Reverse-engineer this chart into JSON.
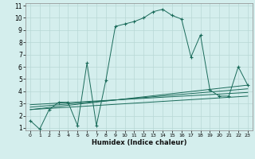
{
  "xlabel": "Humidex (Indice chaleur)",
  "bg_color": "#d4eeed",
  "grid_color": "#b8d8d5",
  "line_color": "#1a6b5a",
  "xlim": [
    -0.5,
    23.5
  ],
  "ylim": [
    0.8,
    11.2
  ],
  "xticks": [
    0,
    1,
    2,
    3,
    4,
    5,
    6,
    7,
    8,
    9,
    10,
    11,
    12,
    13,
    14,
    15,
    16,
    17,
    18,
    19,
    20,
    21,
    22,
    23
  ],
  "yticks": [
    1,
    2,
    3,
    4,
    5,
    6,
    7,
    8,
    9,
    10,
    11
  ],
  "series": {
    "main": {
      "x": [
        0,
        1,
        2,
        3,
        4,
        5,
        6,
        7,
        8,
        9,
        10,
        11,
        12,
        13,
        14,
        15,
        16,
        17,
        18,
        19,
        20,
        21,
        22,
        23
      ],
      "y": [
        1.6,
        0.9,
        2.5,
        3.1,
        3.1,
        1.2,
        6.3,
        1.2,
        4.9,
        9.3,
        9.5,
        9.7,
        10.0,
        10.5,
        10.7,
        10.2,
        9.9,
        6.8,
        8.6,
        4.1,
        3.6,
        3.6,
        6.0,
        4.5
      ]
    },
    "line1": {
      "x": [
        0,
        23
      ],
      "y": [
        2.5,
        4.5
      ]
    },
    "line2": {
      "x": [
        0,
        23
      ],
      "y": [
        2.7,
        4.2
      ]
    },
    "line3": {
      "x": [
        0,
        23
      ],
      "y": [
        2.9,
        3.9
      ]
    },
    "line4": {
      "x": [
        0,
        23
      ],
      "y": [
        2.5,
        3.6
      ]
    }
  }
}
